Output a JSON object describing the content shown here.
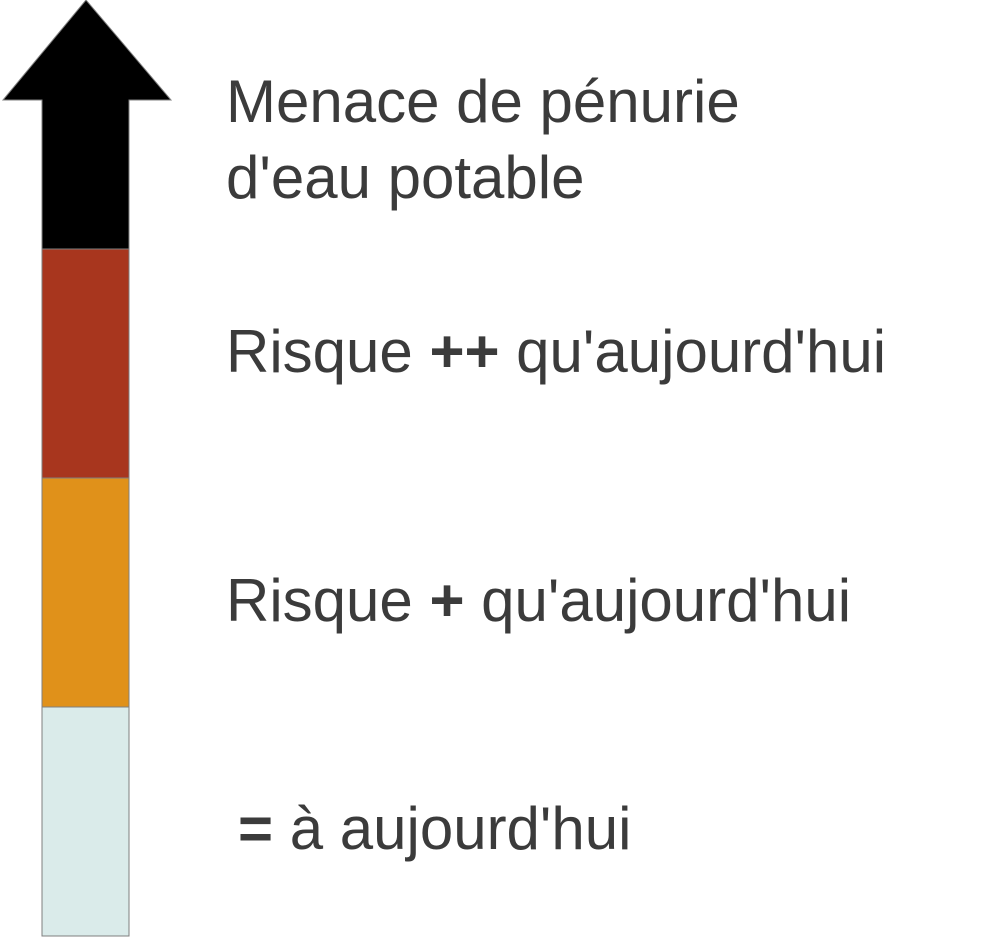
{
  "scale": {
    "colors": {
      "arrow": "#000000",
      "high_risk": "#a8361e",
      "moderate_risk": "#e0911a",
      "same": "#daebea",
      "border": "#7f7f7f"
    }
  },
  "labels": {
    "top_line1": "Menace de pénurie",
    "top_line2": "d'eau potable",
    "high_prefix": "Risque ",
    "high_marker": "++",
    "high_suffix": " qu'aujourd'hui",
    "mid_prefix": "Risque ",
    "mid_marker": "+",
    "mid_suffix": " qu'aujourd'hui",
    "low_marker": "=",
    "low_suffix": " à aujourd'hui"
  }
}
